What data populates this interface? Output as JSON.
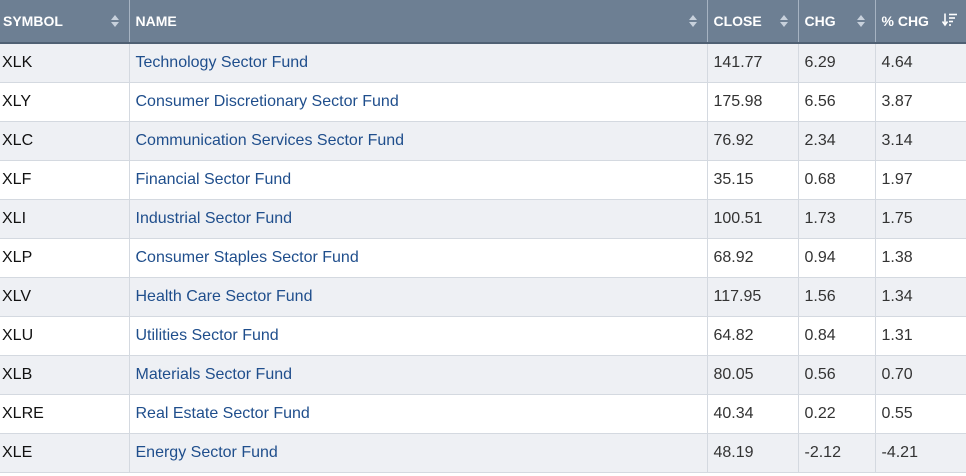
{
  "table": {
    "headers": {
      "symbol": "SYMBOL",
      "name": "NAME",
      "close": "CLOSE",
      "chg": "CHG",
      "pct_chg": "% CHG"
    },
    "sorted_column": "pct_chg",
    "sort_direction": "descending",
    "rows": [
      {
        "symbol": "XLK",
        "name": "Technology Sector Fund",
        "close": "141.77",
        "chg": "6.29",
        "pct_chg": "4.64"
      },
      {
        "symbol": "XLY",
        "name": "Consumer Discretionary Sector Fund",
        "close": "175.98",
        "chg": "6.56",
        "pct_chg": "3.87"
      },
      {
        "symbol": "XLC",
        "name": "Communication Services Sector Fund",
        "close": "76.92",
        "chg": "2.34",
        "pct_chg": "3.14"
      },
      {
        "symbol": "XLF",
        "name": "Financial Sector Fund",
        "close": "35.15",
        "chg": "0.68",
        "pct_chg": "1.97"
      },
      {
        "symbol": "XLI",
        "name": "Industrial Sector Fund",
        "close": "100.51",
        "chg": "1.73",
        "pct_chg": "1.75"
      },
      {
        "symbol": "XLP",
        "name": "Consumer Staples Sector Fund",
        "close": "68.92",
        "chg": "0.94",
        "pct_chg": "1.38"
      },
      {
        "symbol": "XLV",
        "name": "Health Care Sector Fund",
        "close": "117.95",
        "chg": "1.56",
        "pct_chg": "1.34"
      },
      {
        "symbol": "XLU",
        "name": "Utilities Sector Fund",
        "close": "64.82",
        "chg": "0.84",
        "pct_chg": "1.31"
      },
      {
        "symbol": "XLB",
        "name": "Materials Sector Fund",
        "close": "80.05",
        "chg": "0.56",
        "pct_chg": "0.70"
      },
      {
        "symbol": "XLRE",
        "name": "Real Estate Sector Fund",
        "close": "40.34",
        "chg": "0.22",
        "pct_chg": "0.55"
      },
      {
        "symbol": "XLE",
        "name": "Energy Sector Fund",
        "close": "48.19",
        "chg": "-2.12",
        "pct_chg": "-4.21"
      }
    ]
  },
  "colors": {
    "header_bg": "#6d7f93",
    "link": "#1f4e8c",
    "row_alt": "#eef0f4"
  },
  "icons": {
    "sort": "sort-updown-icon",
    "sort_active": "sort-descending-icon"
  }
}
